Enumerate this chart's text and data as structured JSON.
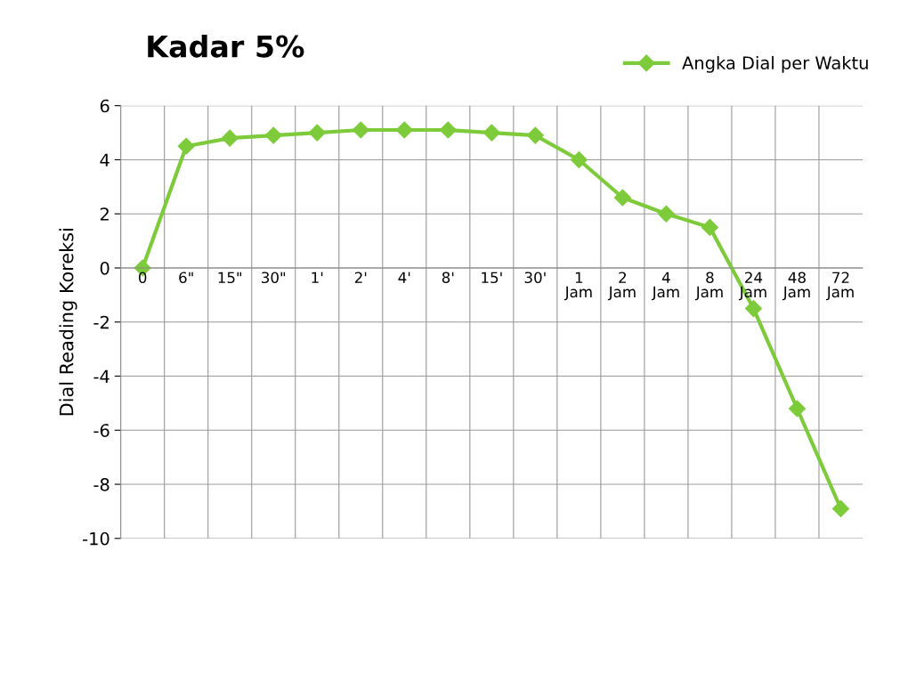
{
  "chart_data": {
    "type": "line",
    "title": "Kadar 5%",
    "ylabel": "Dial Reading Koreksi",
    "categories": [
      "0",
      "6\"",
      "15\"",
      "30\"",
      "1'",
      "2'",
      "4'",
      "8'",
      "15'",
      "30'",
      "1\nJam",
      "2\nJam",
      "4\nJam",
      "8\nJam",
      "24\nJam",
      "48\nJam",
      "72\nJam"
    ],
    "series": [
      {
        "name": "Angka Dial per Waktu",
        "color": "#7dcb3a",
        "values": [
          0,
          4.5,
          4.8,
          4.9,
          5.0,
          5.1,
          5.1,
          5.1,
          5.0,
          4.9,
          4.0,
          2.6,
          2.0,
          1.5,
          -1.5,
          -5.2,
          -8.9
        ]
      }
    ],
    "ylim": [
      -10,
      6
    ],
    "yticks": [
      -10,
      -8,
      -6,
      -4,
      -2,
      0,
      2,
      4,
      6
    ],
    "grid": true,
    "legend": "top right",
    "marker": "diamond",
    "line_style": "solid"
  }
}
